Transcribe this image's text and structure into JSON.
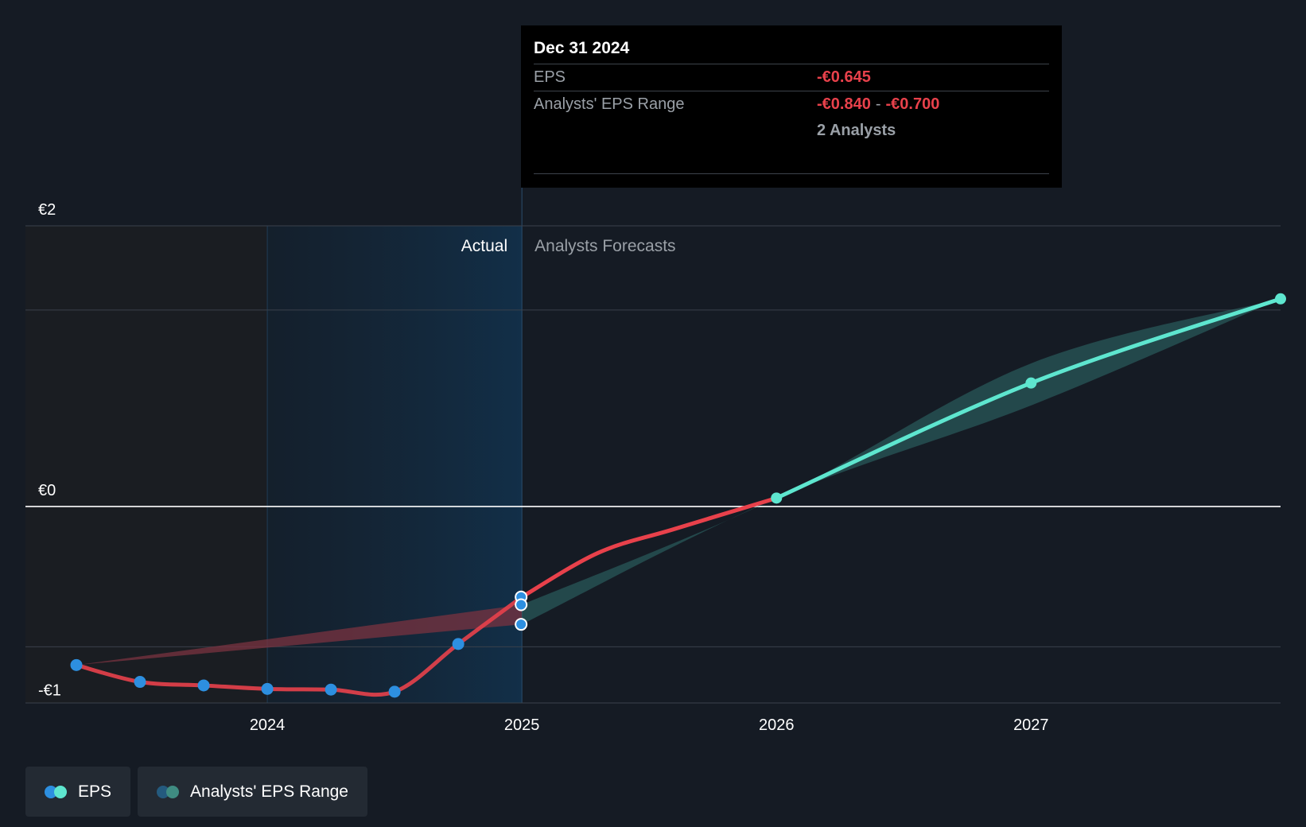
{
  "colors": {
    "background": "#151b24",
    "actual_line": "#e8414b",
    "forecast_line": "#5ee6cf",
    "actual_point": "#2d8fe0",
    "range_forecast": "#2f6e6b",
    "range_actual": "#7a3340",
    "actual_region": "#12304a"
  },
  "tooltip": {
    "date": "Dec 31 2024",
    "eps_label": "EPS",
    "eps_value": "-€0.645",
    "range_label": "Analysts' EPS Range",
    "range_low": "-€0.840",
    "range_sep": "-",
    "range_high": "-€0.700",
    "analysts": "2 Analysts"
  },
  "legend": {
    "eps_label": "EPS",
    "range_label": "Analysts' EPS Range"
  },
  "chart_data": {
    "type": "line",
    "region_labels": {
      "actual": "Actual",
      "forecast": "Analysts Forecasts"
    },
    "y_tick_labels": [
      {
        "value": 2,
        "label": "€2"
      },
      {
        "value": 0,
        "label": "€0"
      },
      {
        "value": -1,
        "label": "-€1"
      }
    ],
    "x_ticks": [
      2024,
      2025,
      2026,
      2027
    ],
    "xlim": [
      2023.05,
      2027.98
    ],
    "ylim": [
      -1.4,
      2.0
    ],
    "grid_values": [
      2.0,
      1.4,
      0.0,
      -1.0,
      -1.4
    ],
    "highlight_x_range": [
      2024.0,
      2025.0
    ],
    "series": [
      {
        "name": "EPS",
        "role": "actual",
        "points": [
          {
            "x": 2023.25,
            "y": -1.13
          },
          {
            "x": 2023.5,
            "y": -1.25
          },
          {
            "x": 2023.75,
            "y": -1.275
          },
          {
            "x": 2024.0,
            "y": -1.3
          },
          {
            "x": 2024.25,
            "y": -1.305
          },
          {
            "x": 2024.5,
            "y": -1.32
          },
          {
            "x": 2024.75,
            "y": -0.98
          },
          {
            "x": 2025.0,
            "y": -0.645
          }
        ]
      },
      {
        "name": "EPS",
        "role": "forecast",
        "points": [
          {
            "x": 2025.0,
            "y": -0.645
          },
          {
            "x": 2025.3,
            "y": -0.33
          },
          {
            "x": 2025.6,
            "y": -0.16
          },
          {
            "x": 2026.0,
            "y": 0.06
          },
          {
            "x": 2027.0,
            "y": 0.88
          },
          {
            "x": 2027.98,
            "y": 1.48
          }
        ]
      }
    ],
    "estimate_points_2025": [
      -0.645,
      -0.7,
      -0.84
    ],
    "analyst_range": {
      "name": "Analysts' EPS Range",
      "low": [
        {
          "x": 2023.25,
          "y": -1.13
        },
        {
          "x": 2025.0,
          "y": -0.84
        },
        {
          "x": 2026.0,
          "y": 0.06
        },
        {
          "x": 2027.0,
          "y": 0.72
        },
        {
          "x": 2027.98,
          "y": 1.48
        }
      ],
      "high": [
        {
          "x": 2023.25,
          "y": -1.13
        },
        {
          "x": 2025.0,
          "y": -0.7
        },
        {
          "x": 2026.0,
          "y": 0.06
        },
        {
          "x": 2027.0,
          "y": 1.02
        },
        {
          "x": 2027.98,
          "y": 1.48
        }
      ]
    }
  }
}
